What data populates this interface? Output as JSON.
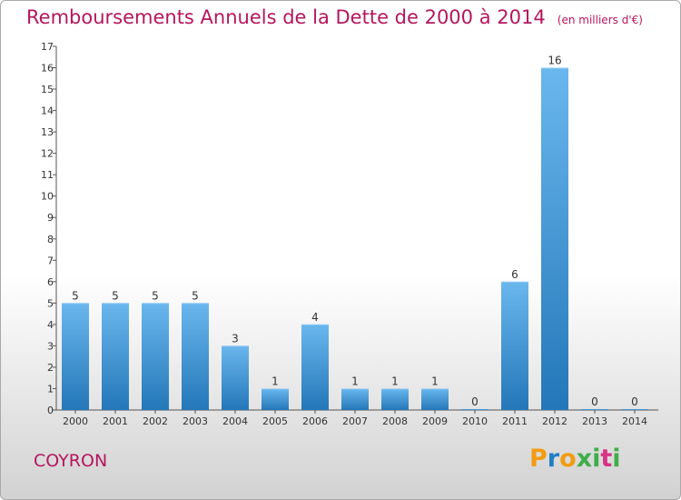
{
  "title": "Remboursements Annuels de la Dette de 2000 à 2014",
  "unit": "(en milliers d'€)",
  "commune": "COYRON",
  "logo": {
    "letters": [
      "P",
      "r",
      "o",
      "x",
      "i",
      "t",
      "i"
    ],
    "colors": [
      "#f39c12",
      "#1e7fc5",
      "#f39c12",
      "#3fae49",
      "#3fae49",
      "#d63384",
      "#3fae49"
    ]
  },
  "colors": {
    "accent": "#b5165e",
    "bar_light": "#6ab7ee",
    "bar_dark": "#2377b8"
  },
  "chart_data": {
    "type": "bar",
    "categories": [
      "2000",
      "2001",
      "2002",
      "2003",
      "2004",
      "2005",
      "2006",
      "2007",
      "2008",
      "2009",
      "2010",
      "2011",
      "2012",
      "2013",
      "2014"
    ],
    "values": [
      5,
      5,
      5,
      5,
      3,
      1,
      4,
      1,
      1,
      1,
      0,
      6,
      16,
      0,
      0
    ],
    "data_labels": [
      "5",
      "5",
      "5",
      "5",
      "3",
      "1",
      "4",
      "1",
      "1",
      "1",
      "0",
      "6",
      "16",
      "0",
      "0"
    ],
    "y_ticks": [
      "0",
      "1",
      "2",
      "3",
      "4",
      "5",
      "6",
      "7",
      "8",
      "9",
      "10",
      "11",
      "12",
      "13",
      "14",
      "15",
      "16",
      "17"
    ],
    "ylim": [
      0,
      17
    ],
    "grid": false,
    "legend": "none"
  }
}
